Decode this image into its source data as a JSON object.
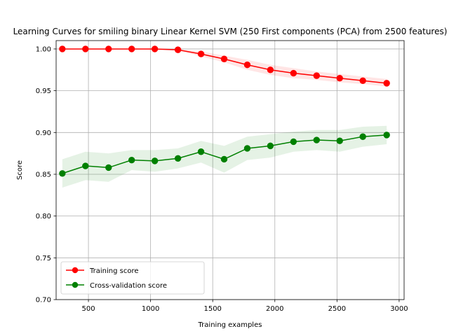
{
  "chart_data": {
    "type": "line",
    "title": "Learning Curves for smiling binary Linear Kernel SVM (250 First components (PCA) from 2500 features)",
    "xlabel": "Training examples",
    "ylabel": "Score",
    "xlim": [
      240,
      3040
    ],
    "ylim": [
      0.7,
      1.01
    ],
    "xticks": [
      500,
      1000,
      1500,
      2000,
      2500,
      3000
    ],
    "xtick_labels": [
      "500",
      "1000",
      "1500",
      "2000",
      "2500",
      "3000"
    ],
    "yticks": [
      0.7,
      0.75,
      0.8,
      0.85,
      0.9,
      0.95,
      1.0
    ],
    "ytick_labels": [
      "0.70",
      "0.75",
      "0.80",
      "0.85",
      "0.90",
      "0.95",
      "1.00"
    ],
    "grid": true,
    "legend_position": "lower-left",
    "x": [
      290,
      476,
      662,
      848,
      1034,
      1220,
      1406,
      1592,
      1778,
      1964,
      2150,
      2336,
      2522,
      2708,
      2900
    ],
    "series": [
      {
        "name": "Training score",
        "color": "#ff0000",
        "fill_color": "#ff0000",
        "values": [
          1.0,
          1.0,
          1.0,
          1.0,
          1.0,
          0.999,
          0.994,
          0.988,
          0.981,
          0.975,
          0.971,
          0.968,
          0.965,
          0.962,
          0.959
        ],
        "band_lower": [
          1.0,
          1.0,
          1.0,
          1.0,
          0.999,
          0.998,
          0.991,
          0.984,
          0.975,
          0.969,
          0.965,
          0.963,
          0.96,
          0.958,
          0.955
        ],
        "band_upper": [
          1.0,
          1.0,
          1.0,
          1.0,
          1.0,
          1.0,
          0.997,
          0.992,
          0.987,
          0.981,
          0.977,
          0.973,
          0.97,
          0.967,
          0.964
        ]
      },
      {
        "name": "Cross-validation score",
        "color": "#008000",
        "fill_color": "#008000",
        "values": [
          0.851,
          0.86,
          0.858,
          0.867,
          0.866,
          0.869,
          0.877,
          0.868,
          0.881,
          0.884,
          0.889,
          0.891,
          0.89,
          0.895,
          0.897
        ],
        "band_lower": [
          0.834,
          0.843,
          0.841,
          0.855,
          0.853,
          0.857,
          0.864,
          0.852,
          0.867,
          0.87,
          0.877,
          0.879,
          0.877,
          0.883,
          0.886
        ],
        "band_upper": [
          0.868,
          0.877,
          0.875,
          0.879,
          0.879,
          0.881,
          0.89,
          0.884,
          0.895,
          0.898,
          0.901,
          0.903,
          0.903,
          0.907,
          0.908
        ]
      }
    ]
  }
}
